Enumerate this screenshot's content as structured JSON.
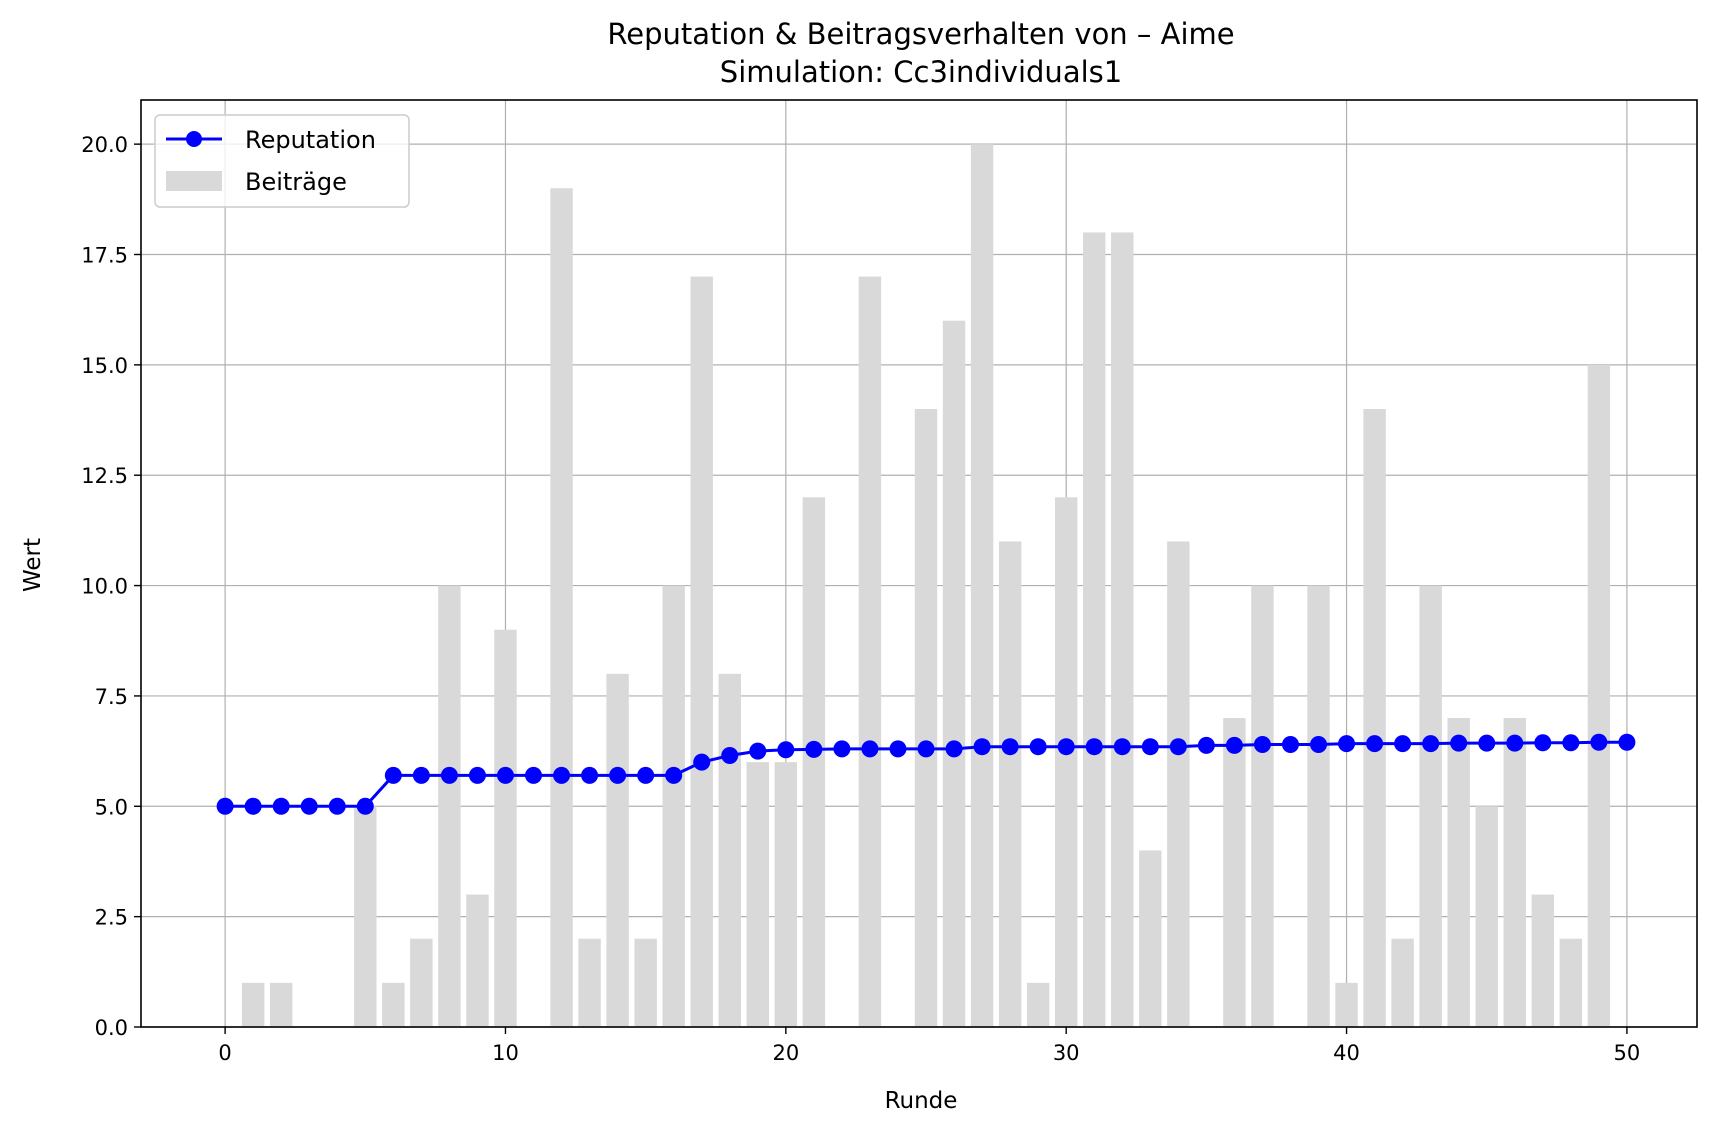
{
  "chart_data": {
    "type": "bar",
    "title": "Reputation & Beitragsverhalten von – Aime",
    "subtitle": "Simulation: Cc3individuals1",
    "xlabel": "Runde",
    "ylabel": "Wert",
    "xlim": [
      -3,
      52.5
    ],
    "ylim": [
      0,
      21
    ],
    "xticks": [
      0,
      10,
      20,
      30,
      40,
      50
    ],
    "xtick_labels": [
      "0",
      "10",
      "20",
      "30",
      "40",
      "50"
    ],
    "yticks": [
      0,
      2.5,
      5,
      7.5,
      10,
      12.5,
      15,
      17.5,
      20
    ],
    "ytick_labels": [
      "0.0",
      "2.5",
      "5.0",
      "7.5",
      "10.0",
      "12.5",
      "15.0",
      "17.5",
      "20.0"
    ],
    "grid": true,
    "legend_position": "top-left",
    "x": [
      0,
      1,
      2,
      3,
      4,
      5,
      6,
      7,
      8,
      9,
      10,
      11,
      12,
      13,
      14,
      15,
      16,
      17,
      18,
      19,
      20,
      21,
      22,
      23,
      24,
      25,
      26,
      27,
      28,
      29,
      30,
      31,
      32,
      33,
      34,
      35,
      36,
      37,
      38,
      39,
      40,
      41,
      42,
      43,
      44,
      45,
      46,
      47,
      48,
      49,
      50
    ],
    "series": [
      {
        "name": "Beiträge",
        "kind": "bar",
        "color": "#d9d9d9",
        "values": [
          0,
          1,
          1,
          0,
          0,
          5,
          1,
          2,
          10,
          3,
          9,
          0,
          19,
          2,
          8,
          2,
          10,
          17,
          8,
          6,
          6,
          12,
          0,
          17,
          0,
          14,
          16,
          20,
          11,
          1,
          12,
          18,
          18,
          4,
          11,
          0,
          7,
          10,
          0,
          10,
          1,
          14,
          2,
          10,
          7,
          5,
          7,
          3,
          2,
          15,
          0
        ]
      },
      {
        "name": "Reputation",
        "kind": "line",
        "color": "#0000ff",
        "values": [
          5.0,
          5.0,
          5.0,
          5.0,
          5.0,
          5.0,
          5.7,
          5.7,
          5.7,
          5.7,
          5.7,
          5.7,
          5.7,
          5.7,
          5.7,
          5.7,
          5.7,
          6.0,
          6.15,
          6.25,
          6.28,
          6.29,
          6.3,
          6.3,
          6.3,
          6.3,
          6.3,
          6.35,
          6.35,
          6.35,
          6.35,
          6.35,
          6.35,
          6.35,
          6.35,
          6.38,
          6.38,
          6.4,
          6.4,
          6.4,
          6.42,
          6.42,
          6.42,
          6.42,
          6.43,
          6.43,
          6.43,
          6.44,
          6.44,
          6.45,
          6.45
        ]
      }
    ]
  }
}
